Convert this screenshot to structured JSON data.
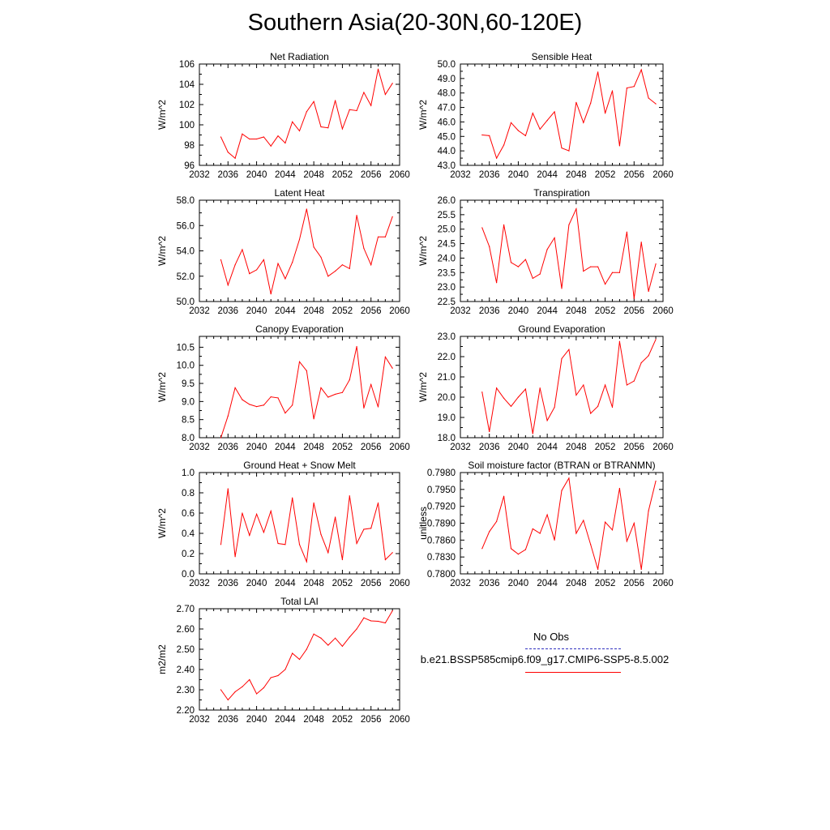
{
  "page_title": "Southern Asia(20-30N,60-120E)",
  "colors": {
    "series": "#ff0000",
    "obs": "#3030c0",
    "axis": "#000000"
  },
  "legend": {
    "entries": [
      {
        "label": "No Obs",
        "color": "#3030c0",
        "style": "dashed"
      },
      {
        "label": "b.e21.BSSP585cmip6.f09_g17.CMIP6-SSP5-8.5.002",
        "color": "#ff0000",
        "style": "solid"
      }
    ]
  },
  "chart_data": [
    {
      "type": "line",
      "title": "Net Radiation",
      "ylabel": "W/m^2",
      "xlim": [
        2032,
        2060
      ],
      "ylim": [
        96,
        106
      ],
      "xticks": [
        "2032",
        "2036",
        "2040",
        "2044",
        "2048",
        "2052",
        "2056",
        "2060"
      ],
      "yticks": [
        "96",
        "98",
        "100",
        "102",
        "104",
        "106"
      ],
      "series": [
        {
          "x": [
            2035,
            2036,
            2037,
            2038,
            2039,
            2040,
            2041,
            2042,
            2043,
            2044,
            2045,
            2046,
            2047,
            2048,
            2049,
            2050,
            2051,
            2052,
            2053,
            2054,
            2055,
            2056,
            2057,
            2058,
            2059
          ],
          "values": [
            98.8,
            97.3,
            96.7,
            99.1,
            98.6,
            98.6,
            98.8,
            97.9,
            98.9,
            98.2,
            100.3,
            99.4,
            101.3,
            102.3,
            99.8,
            99.7,
            102.4,
            99.6,
            101.5,
            101.4,
            103.2,
            101.9,
            105.5,
            103,
            104.1
          ]
        }
      ]
    },
    {
      "type": "line",
      "title": "Sensible Heat",
      "ylabel": "W/m^2",
      "xlim": [
        2032,
        2060
      ],
      "ylim": [
        43,
        50
      ],
      "xticks": [
        "2032",
        "2036",
        "2040",
        "2044",
        "2048",
        "2052",
        "2056",
        "2060"
      ],
      "yticks": [
        "43.0",
        "44.0",
        "45.0",
        "46.0",
        "47.0",
        "48.0",
        "49.0",
        "50.0"
      ],
      "series": [
        {
          "x": [
            2035,
            2036,
            2037,
            2038,
            2039,
            2040,
            2041,
            2042,
            2043,
            2044,
            2045,
            2046,
            2047,
            2048,
            2049,
            2050,
            2051,
            2052,
            2053,
            2054,
            2055,
            2056,
            2057,
            2058,
            2059
          ],
          "values": [
            45.1,
            45.05,
            43.5,
            44.4,
            45.95,
            45.4,
            45.05,
            46.6,
            45.5,
            46.1,
            46.7,
            44.2,
            44.0,
            47.35,
            45.95,
            47.3,
            49.45,
            46.6,
            48.15,
            44.35,
            48.35,
            48.45,
            49.6,
            47.65,
            47.25
          ]
        }
      ]
    },
    {
      "type": "line",
      "title": "Latent Heat",
      "ylabel": "W/m^2",
      "xlim": [
        2032,
        2060
      ],
      "ylim": [
        50,
        58
      ],
      "xticks": [
        "2032",
        "2036",
        "2040",
        "2044",
        "2048",
        "2052",
        "2056",
        "2060"
      ],
      "yticks": [
        "50.0",
        "52.0",
        "54.0",
        "56.0",
        "58.0"
      ],
      "series": [
        {
          "x": [
            2035,
            2036,
            2037,
            2038,
            2039,
            2040,
            2041,
            2042,
            2043,
            2044,
            2045,
            2046,
            2047,
            2048,
            2049,
            2050,
            2051,
            2052,
            2053,
            2054,
            2055,
            2056,
            2057,
            2058,
            2059
          ],
          "values": [
            53.3,
            51.3,
            52.9,
            54.1,
            52.2,
            52.5,
            53.3,
            50.6,
            53.0,
            51.8,
            53.1,
            54.9,
            57.3,
            54.3,
            53.5,
            52.0,
            52.4,
            52.9,
            52.6,
            56.8,
            54.2,
            52.9,
            55.1,
            55.1,
            56.7
          ]
        }
      ]
    },
    {
      "type": "line",
      "title": "Transpiration",
      "ylabel": "W/m^2",
      "xlim": [
        2032,
        2060
      ],
      "ylim": [
        22.5,
        26
      ],
      "xticks": [
        "2032",
        "2036",
        "2040",
        "2044",
        "2048",
        "2052",
        "2056",
        "2060"
      ],
      "yticks": [
        "22.5",
        "23.0",
        "23.5",
        "24.0",
        "24.5",
        "25.0",
        "25.5",
        "26.0"
      ],
      "series": [
        {
          "x": [
            2035,
            2036,
            2037,
            2038,
            2039,
            2040,
            2041,
            2042,
            2043,
            2044,
            2045,
            2046,
            2047,
            2048,
            2049,
            2050,
            2051,
            2052,
            2053,
            2054,
            2055,
            2056,
            2057,
            2058,
            2059
          ],
          "values": [
            25.05,
            24.4,
            23.15,
            25.15,
            23.85,
            23.7,
            23.95,
            23.3,
            23.45,
            24.3,
            24.7,
            22.95,
            25.15,
            25.7,
            23.55,
            23.7,
            23.7,
            23.1,
            23.5,
            23.5,
            24.9,
            22.6,
            24.55,
            22.85,
            23.8
          ]
        }
      ]
    },
    {
      "type": "line",
      "title": "Canopy Evaporation",
      "ylabel": "W/m^2",
      "xlim": [
        2032,
        2060
      ],
      "ylim": [
        8,
        10.8
      ],
      "xticks": [
        "2032",
        "2036",
        "2040",
        "2044",
        "2048",
        "2052",
        "2056",
        "2060"
      ],
      "yticks": [
        "8.0",
        "8.5",
        "9.0",
        "9.5",
        "10.0",
        "10.5"
      ],
      "series": [
        {
          "x": [
            2035,
            2036,
            2037,
            2038,
            2039,
            2040,
            2041,
            2042,
            2043,
            2044,
            2045,
            2046,
            2047,
            2048,
            2049,
            2050,
            2051,
            2052,
            2053,
            2054,
            2055,
            2056,
            2057,
            2058,
            2059
          ],
          "values": [
            8.0,
            8.6,
            9.38,
            9.05,
            8.92,
            8.86,
            8.9,
            9.13,
            9.1,
            8.68,
            8.9,
            10.1,
            9.85,
            8.52,
            9.38,
            9.12,
            9.2,
            9.25,
            9.6,
            10.52,
            8.82,
            9.47,
            8.85,
            10.23,
            9.92
          ]
        }
      ]
    },
    {
      "type": "line",
      "title": "Ground Evaporation",
      "ylabel": "W/m^2",
      "xlim": [
        2032,
        2060
      ],
      "ylim": [
        18,
        23
      ],
      "xticks": [
        "2032",
        "2036",
        "2040",
        "2044",
        "2048",
        "2052",
        "2056",
        "2060"
      ],
      "yticks": [
        "18.0",
        "19.0",
        "20.0",
        "21.0",
        "22.0",
        "23.0"
      ],
      "series": [
        {
          "x": [
            2035,
            2036,
            2037,
            2038,
            2039,
            2040,
            2041,
            2042,
            2043,
            2044,
            2045,
            2046,
            2047,
            2048,
            2049,
            2050,
            2051,
            2052,
            2053,
            2054,
            2055,
            2056,
            2057,
            2058,
            2059
          ],
          "values": [
            20.25,
            18.3,
            20.45,
            19.95,
            19.55,
            20.0,
            20.4,
            18.2,
            20.45,
            18.85,
            19.5,
            21.9,
            22.35,
            20.1,
            20.6,
            19.2,
            19.55,
            20.6,
            19.5,
            22.75,
            20.6,
            20.8,
            21.7,
            22.05,
            22.85
          ]
        }
      ]
    },
    {
      "type": "line",
      "title": "Ground Heat + Snow Melt",
      "ylabel": "W/m^2",
      "xlim": [
        2032,
        2060
      ],
      "ylim": [
        0,
        1
      ],
      "xticks": [
        "2032",
        "2036",
        "2040",
        "2044",
        "2048",
        "2052",
        "2056",
        "2060"
      ],
      "yticks": [
        "0.0",
        "0.2",
        "0.4",
        "0.6",
        "0.8",
        "1.0"
      ],
      "series": [
        {
          "x": [
            2035,
            2036,
            2037,
            2038,
            2039,
            2040,
            2041,
            2042,
            2043,
            2044,
            2045,
            2046,
            2047,
            2048,
            2049,
            2050,
            2051,
            2052,
            2053,
            2054,
            2055,
            2056,
            2057,
            2058,
            2059
          ],
          "values": [
            0.29,
            0.84,
            0.17,
            0.6,
            0.38,
            0.59,
            0.41,
            0.62,
            0.3,
            0.29,
            0.75,
            0.29,
            0.12,
            0.7,
            0.39,
            0.21,
            0.56,
            0.14,
            0.77,
            0.3,
            0.44,
            0.45,
            0.7,
            0.14,
            0.21
          ]
        }
      ]
    },
    {
      "type": "line",
      "title": "Soil moisture factor (BTRAN or BTRANMN)",
      "ylabel": "unitless",
      "xlim": [
        2032,
        2060
      ],
      "ylim": [
        0.78,
        0.798
      ],
      "xticks": [
        "2032",
        "2036",
        "2040",
        "2044",
        "2048",
        "2052",
        "2056",
        "2060"
      ],
      "yticks": [
        "0.7800",
        "0.7830",
        "0.7860",
        "0.7890",
        "0.7920",
        "0.7950",
        "0.7980"
      ],
      "series": [
        {
          "x": [
            2035,
            2036,
            2037,
            2038,
            2039,
            2040,
            2041,
            2042,
            2043,
            2044,
            2045,
            2046,
            2047,
            2048,
            2049,
            2050,
            2051,
            2052,
            2053,
            2054,
            2055,
            2056,
            2057,
            2058,
            2059
          ],
          "values": [
            0.7845,
            0.7875,
            0.7893,
            0.7938,
            0.7845,
            0.7835,
            0.7843,
            0.788,
            0.7872,
            0.7905,
            0.786,
            0.7948,
            0.797,
            0.7872,
            0.7895,
            0.7852,
            0.7808,
            0.7892,
            0.7878,
            0.7952,
            0.7858,
            0.789,
            0.7808,
            0.7912,
            0.7965
          ]
        }
      ]
    },
    {
      "type": "line",
      "title": "Total LAI",
      "ylabel": "m2/m2",
      "xlim": [
        2032,
        2060
      ],
      "ylim": [
        2.2,
        2.7
      ],
      "xticks": [
        "2032",
        "2036",
        "2040",
        "2044",
        "2048",
        "2052",
        "2056",
        "2060"
      ],
      "yticks": [
        "2.20",
        "2.30",
        "2.40",
        "2.50",
        "2.60",
        "2.70"
      ],
      "series": [
        {
          "x": [
            2035,
            2036,
            2037,
            2038,
            2039,
            2040,
            2041,
            2042,
            2043,
            2044,
            2045,
            2046,
            2047,
            2048,
            2049,
            2050,
            2051,
            2052,
            2053,
            2054,
            2055,
            2056,
            2057,
            2058,
            2059
          ],
          "values": [
            2.3,
            2.25,
            2.29,
            2.315,
            2.35,
            2.28,
            2.31,
            2.36,
            2.37,
            2.4,
            2.48,
            2.45,
            2.5,
            2.575,
            2.555,
            2.52,
            2.555,
            2.515,
            2.56,
            2.6,
            2.655,
            2.64,
            2.638,
            2.63,
            2.69
          ]
        }
      ]
    }
  ]
}
